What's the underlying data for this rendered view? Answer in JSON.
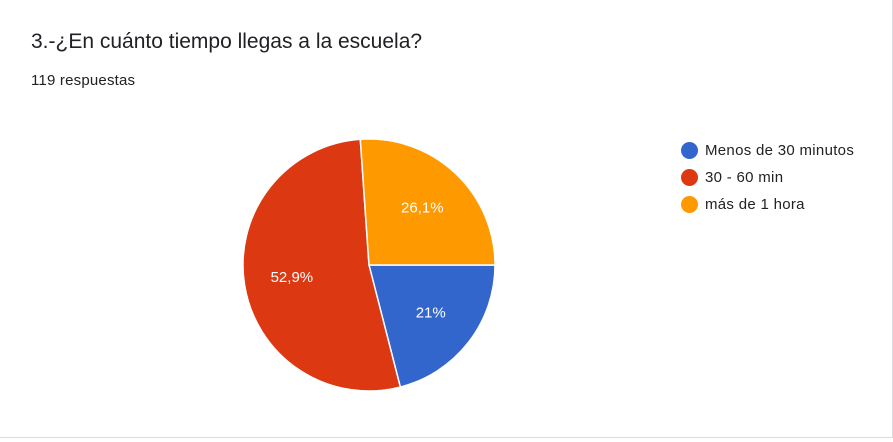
{
  "question": {
    "title": "3.-¿En cuánto tiempo llegas a la escuela?",
    "response_count": "119 respuestas"
  },
  "chart_data": {
    "type": "pie",
    "categories": [
      "Menos de 30 minutos",
      "30 - 60 min",
      "más de 1 hora"
    ],
    "values": [
      21,
      52.9,
      26.1
    ],
    "labels": [
      "21%",
      "52,9%",
      "26,1%"
    ],
    "colors": [
      "#3366cc",
      "#dc3912",
      "#ff9900"
    ],
    "legend_position": "right",
    "title": "",
    "start_angle_deg": 90,
    "direction": "clockwise"
  }
}
